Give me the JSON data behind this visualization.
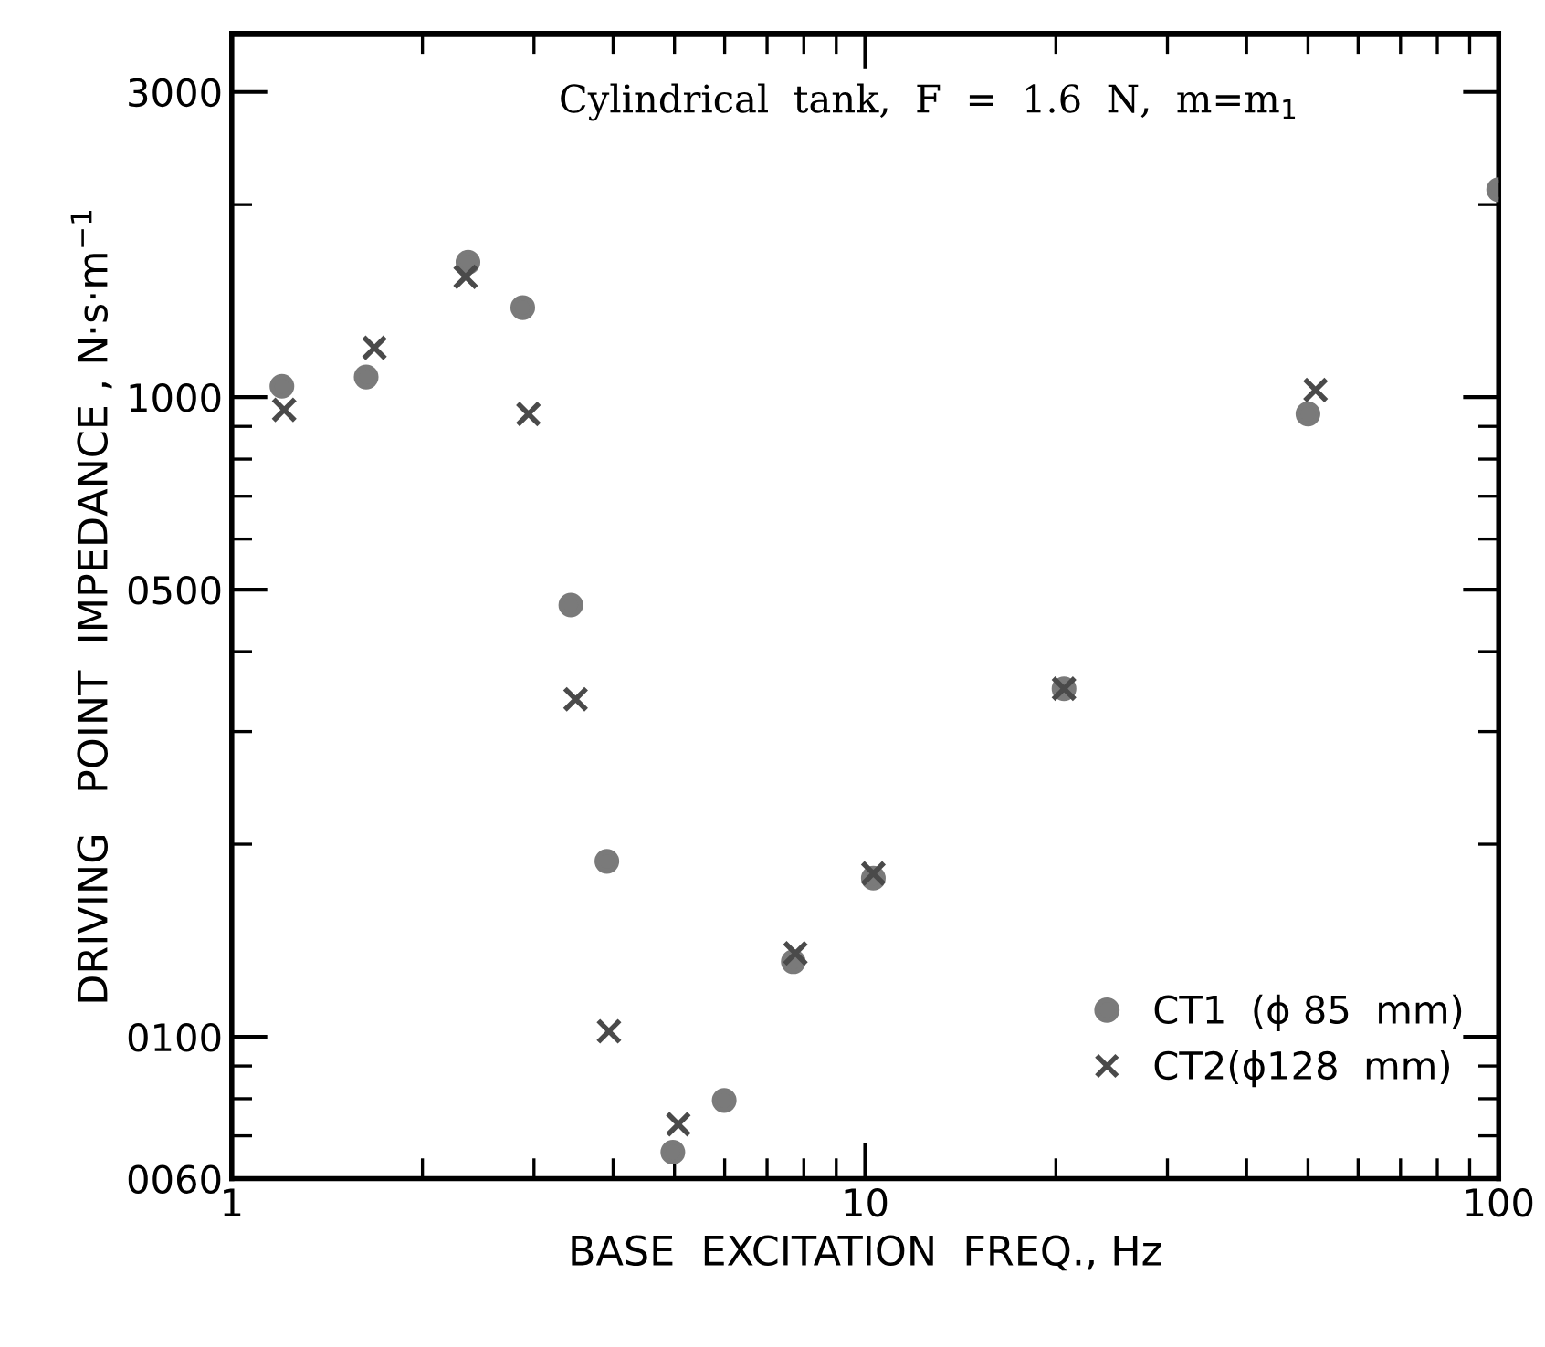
{
  "chart_data": {
    "type": "scatter",
    "xlabel": "BASE  EXCITATION  FREQ., Hz",
    "ylabel": "DRIVING   POINT  IMPEDANCE , N·s·m$^{−1}$",
    "annotations": [
      "Cylindrical  tank,  F  =  1.6  N,  m=m$_{1}$"
    ],
    "log": "xy",
    "xlim": [
      1,
      100
    ],
    "ylim": [
      60,
      3700
    ],
    "xticks": [
      1,
      10,
      100
    ],
    "yticks": [
      {
        "value": 60,
        "label": "0060"
      },
      {
        "value": 100,
        "label": "0100"
      },
      {
        "value": 500,
        "label": "0500"
      },
      1000,
      3000
    ],
    "grid": false,
    "legend": "bottom right",
    "series": [
      {
        "name": "CT1  (ϕ 85  mm)",
        "color": "#7a7a7a",
        "marker": "circle",
        "x": [
          1.2,
          1.63,
          2.36,
          2.88,
          3.43,
          3.91,
          4.97,
          5.99,
          7.7,
          10.3,
          20.6,
          50,
          100
        ],
        "values": [
          1040,
          1075,
          1625,
          1380,
          473,
          188,
          66,
          79.5,
          131,
          177,
          350,
          941,
          2110
        ]
      },
      {
        "name": "CT2(ϕ128  mm)",
        "color": "#4a4a4a",
        "marker": "cross",
        "x": [
          1.21,
          1.68,
          2.34,
          2.94,
          3.49,
          3.94,
          5.07,
          7.76,
          10.3,
          20.6,
          51.4
        ],
        "values": [
          955,
          1194,
          1542,
          941,
          337,
          102,
          73,
          135,
          180,
          350,
          1026
        ]
      }
    ]
  }
}
